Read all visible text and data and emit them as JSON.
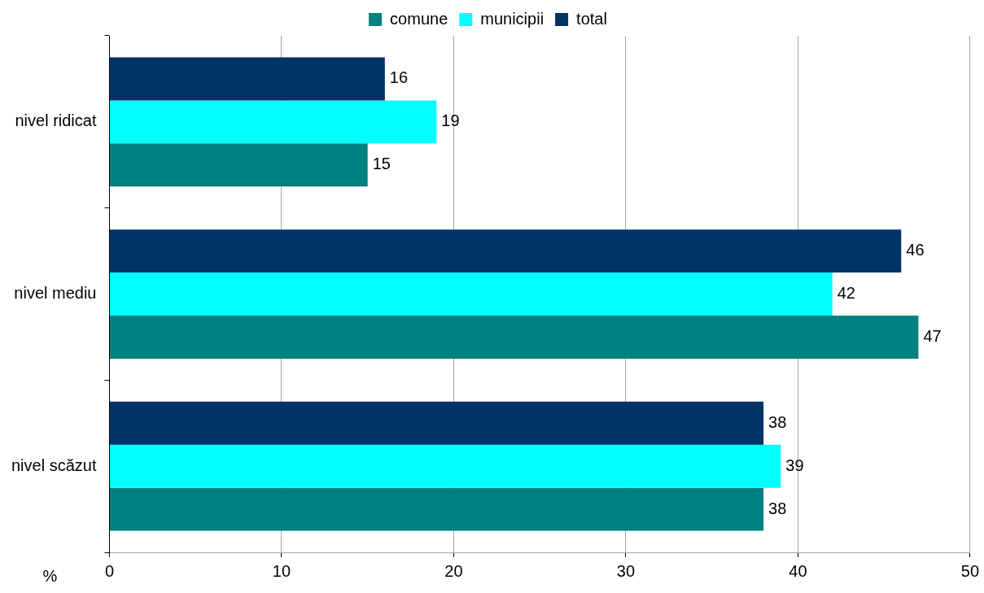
{
  "chart_data": {
    "type": "bar",
    "orientation": "horizontal",
    "xlabel": "%",
    "categories": [
      "nivel ridicat",
      "nivel mediu",
      "nivel scăzut"
    ],
    "series": [
      {
        "name": "total",
        "color": "#003366",
        "values": [
          16,
          46,
          38
        ]
      },
      {
        "name": "municipii",
        "color": "#00ffff",
        "values": [
          19,
          42,
          39
        ]
      },
      {
        "name": "comune",
        "color": "#008080",
        "values": [
          15,
          47,
          38
        ]
      }
    ],
    "xlim": [
      0,
      50
    ],
    "xticks": [
      0,
      10,
      20,
      30,
      40,
      50
    ],
    "grid": "x",
    "legend": "top",
    "data_labels": true
  }
}
